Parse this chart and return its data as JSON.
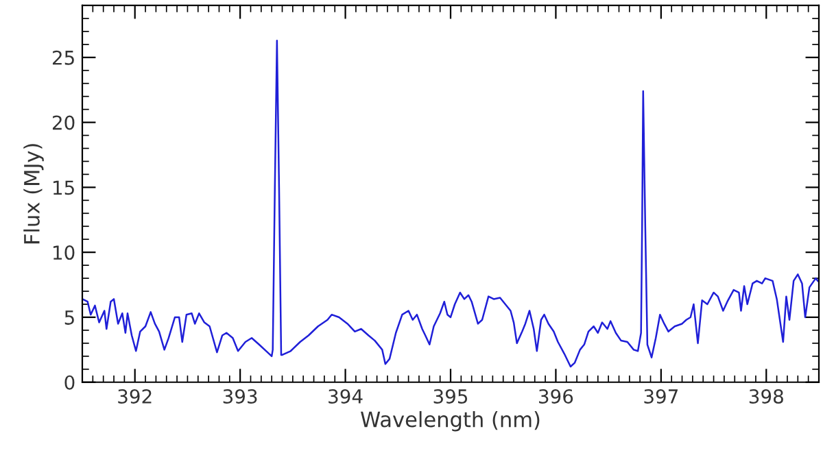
{
  "chart_data": {
    "type": "line",
    "xlabel": "Wavelength (nm)",
    "ylabel": "Flux (MJy)",
    "xlim": [
      391.5,
      398.5
    ],
    "ylim": [
      0,
      29
    ],
    "xticks": [
      392,
      393,
      394,
      395,
      396,
      397,
      398
    ],
    "yticks": [
      0,
      5,
      10,
      15,
      20,
      25
    ],
    "grid": false,
    "legend": false,
    "marker": "none",
    "line_style": "solid",
    "series": [
      {
        "color": "#1f1fd8",
        "x": [
          391.5,
          391.55,
          391.58,
          391.62,
          391.66,
          391.71,
          391.73,
          391.77,
          391.8,
          391.84,
          391.88,
          391.91,
          391.93,
          391.97,
          392.01,
          392.05,
          392.1,
          392.15,
          392.19,
          392.23,
          392.28,
          392.32,
          392.38,
          392.42,
          392.45,
          392.49,
          392.54,
          392.57,
          392.61,
          392.66,
          392.71,
          392.78,
          392.83,
          392.87,
          392.93,
          392.98,
          393.05,
          393.11,
          393.18,
          393.26,
          393.3,
          393.31,
          393.33,
          393.35,
          393.37,
          393.39,
          393.4,
          393.48,
          393.57,
          393.65,
          393.74,
          393.83,
          393.87,
          393.94,
          394.02,
          394.09,
          394.15,
          394.22,
          394.28,
          394.35,
          394.38,
          394.42,
          394.48,
          394.54,
          394.6,
          394.64,
          394.68,
          394.73,
          394.76,
          394.8,
          394.84,
          394.9,
          394.94,
          394.97,
          395.0,
          395.04,
          395.09,
          395.13,
          395.17,
          395.2,
          395.26,
          395.3,
          395.36,
          395.41,
          395.47,
          395.52,
          395.57,
          395.6,
          395.63,
          395.68,
          395.71,
          395.75,
          395.79,
          395.82,
          395.86,
          395.89,
          395.93,
          395.98,
          396.02,
          396.08,
          396.14,
          396.18,
          396.23,
          396.27,
          396.31,
          396.36,
          396.4,
          396.44,
          396.49,
          396.52,
          396.57,
          396.62,
          396.68,
          396.74,
          396.78,
          396.81,
          396.82,
          396.83,
          396.85,
          396.87,
          396.91,
          396.95,
          396.99,
          397.03,
          397.07,
          397.13,
          397.2,
          397.24,
          397.28,
          397.31,
          397.35,
          397.39,
          397.44,
          397.5,
          397.54,
          397.59,
          397.63,
          397.69,
          397.74,
          397.76,
          397.79,
          397.82,
          397.87,
          397.91,
          397.96,
          397.99,
          398.06,
          398.1,
          398.16,
          398.19,
          398.22,
          398.26,
          398.3,
          398.34,
          398.37,
          398.41,
          398.47,
          398.49
        ],
        "values": [
          6.4,
          6.2,
          5.2,
          5.9,
          4.6,
          5.5,
          4.1,
          6.2,
          6.4,
          4.5,
          5.3,
          3.8,
          5.3,
          3.6,
          2.4,
          3.9,
          4.3,
          5.4,
          4.5,
          3.9,
          2.5,
          3.4,
          5.0,
          5.0,
          3.1,
          5.2,
          5.3,
          4.5,
          5.3,
          4.6,
          4.3,
          2.3,
          3.6,
          3.8,
          3.4,
          2.4,
          3.1,
          3.4,
          2.9,
          2.3,
          2.0,
          2.5,
          15,
          26.3,
          15,
          2.1,
          2.1,
          2.4,
          3.1,
          3.6,
          4.3,
          4.8,
          5.2,
          5.0,
          4.5,
          3.9,
          4.1,
          3.6,
          3.2,
          2.5,
          1.4,
          1.8,
          3.8,
          5.2,
          5.5,
          4.8,
          5.2,
          4.1,
          3.6,
          2.9,
          4.3,
          5.3,
          6.2,
          5.2,
          5.0,
          6.0,
          6.9,
          6.4,
          6.7,
          6.2,
          4.5,
          4.8,
          6.6,
          6.4,
          6.5,
          6.0,
          5.5,
          4.6,
          3.0,
          3.9,
          4.5,
          5.5,
          4.1,
          2.4,
          4.8,
          5.2,
          4.5,
          3.9,
          3.1,
          2.2,
          1.2,
          1.5,
          2.5,
          2.9,
          3.9,
          4.3,
          3.8,
          4.6,
          4.1,
          4.7,
          3.8,
          3.2,
          3.1,
          2.5,
          2.4,
          3.8,
          12,
          22.4,
          12,
          2.9,
          1.9,
          3.4,
          5.2,
          4.5,
          3.9,
          4.3,
          4.5,
          4.8,
          5.0,
          6.0,
          3.0,
          6.3,
          6.0,
          6.9,
          6.6,
          5.5,
          6.2,
          7.1,
          6.9,
          5.5,
          7.4,
          6.0,
          7.6,
          7.8,
          7.6,
          8.0,
          7.8,
          6.4,
          3.1,
          6.6,
          4.8,
          7.8,
          8.3,
          7.6,
          5.0,
          7.3,
          8.0,
          7.8
        ]
      }
    ]
  }
}
